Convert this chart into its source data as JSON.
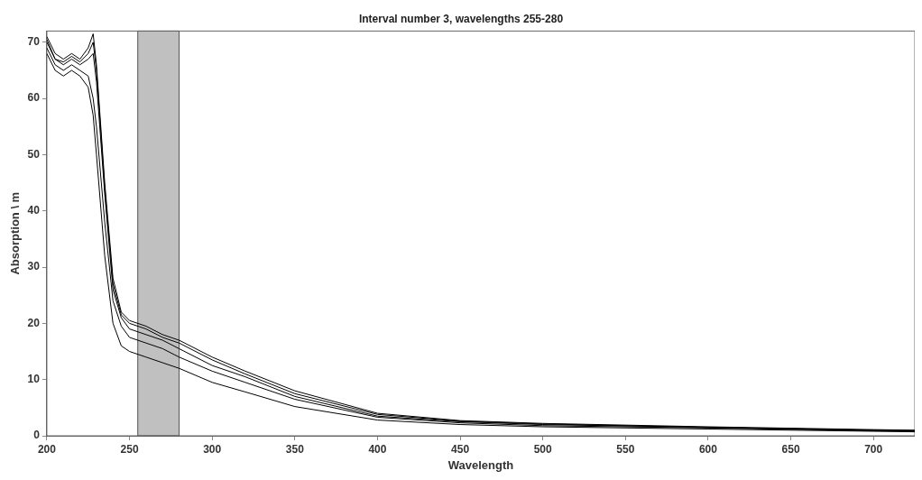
{
  "chart_data": {
    "type": "line",
    "title": "Interval number 3, wavelengths 255-280",
    "xlabel": "Wavelength",
    "ylabel": "Absorption \\ m",
    "x": [
      200,
      205,
      210,
      215,
      220,
      225,
      228,
      230,
      235,
      240,
      245,
      250,
      260,
      270,
      280,
      300,
      320,
      350,
      400,
      450,
      500,
      600,
      700,
      725
    ],
    "series": [
      {
        "color": "#000000",
        "values": [
          71,
          68,
          67,
          68,
          67,
          69,
          71.5,
          66,
          45,
          28,
          22,
          20.5,
          19.5,
          18,
          17,
          14,
          11.5,
          8,
          4,
          2.7,
          2.2,
          1.6,
          1.1,
          1.0
        ]
      },
      {
        "color": "#000000",
        "values": [
          70.5,
          67,
          66.5,
          67.5,
          66.5,
          68,
          70,
          65,
          44,
          27,
          21.5,
          20,
          19,
          17.5,
          16.5,
          13.5,
          11,
          7.5,
          3.8,
          2.6,
          2.1,
          1.5,
          1,
          0.9
        ]
      },
      {
        "color": "#000000",
        "values": [
          70,
          67,
          66,
          67,
          66,
          67,
          68,
          63,
          43,
          26,
          21,
          19,
          18,
          17,
          15.5,
          12.5,
          10.5,
          7,
          3.5,
          2.5,
          2,
          1.5,
          1,
          0.9
        ]
      },
      {
        "color": "#000000",
        "values": [
          69,
          66,
          65,
          66,
          65,
          64,
          60,
          55,
          38,
          24,
          19.5,
          17.5,
          16.5,
          15.5,
          14,
          11.5,
          9.5,
          6.5,
          3.3,
          2.3,
          1.8,
          1.4,
          0.9,
          0.8
        ]
      },
      {
        "color": "#000000",
        "values": [
          68,
          65,
          64,
          65,
          64,
          62,
          57,
          50,
          32,
          20,
          16,
          15,
          14,
          13,
          12,
          9.5,
          7.8,
          5.2,
          2.8,
          2,
          1.6,
          1.2,
          0.8,
          0.7
        ]
      }
    ],
    "xlim": [
      200,
      725
    ],
    "ylim": [
      0,
      72
    ],
    "xticks": [
      200,
      250,
      300,
      350,
      400,
      450,
      500,
      550,
      600,
      650,
      700
    ],
    "yticks": [
      0,
      10,
      20,
      30,
      40,
      50,
      60,
      70
    ],
    "bands": [
      {
        "axis": "x",
        "from": 255,
        "to": 280,
        "color": "#c0c0c0"
      }
    ],
    "grid": false,
    "legend": false,
    "marker": "none",
    "line_style": "solid"
  }
}
